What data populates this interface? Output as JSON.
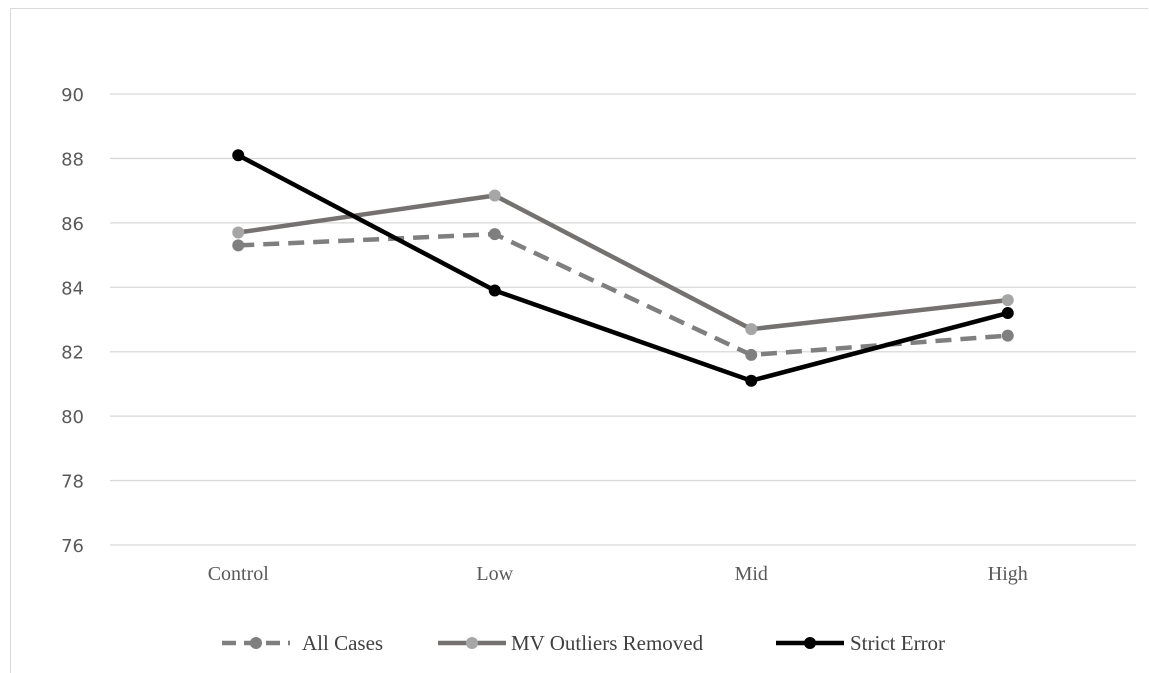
{
  "chart_data": {
    "type": "line",
    "categories": [
      "Control",
      "Low",
      "Mid",
      "High"
    ],
    "series": [
      {
        "name": "All Cases",
        "values": [
          85.3,
          85.65,
          81.9,
          82.5
        ],
        "color": "#7f7f7f",
        "marker_color": "#7f7f7f",
        "dashed": true
      },
      {
        "name": "MV Outliers Removed",
        "values": [
          85.7,
          86.85,
          82.7,
          83.6
        ],
        "color": "#767171",
        "marker_color": "#a6a6a6",
        "dashed": false
      },
      {
        "name": "Strict Error",
        "values": [
          88.1,
          83.9,
          81.1,
          83.2
        ],
        "color": "#000000",
        "marker_color": "#000000",
        "dashed": false
      }
    ],
    "yticks": [
      "76",
      "78",
      "80",
      "82",
      "84",
      "86",
      "88",
      "90"
    ],
    "ylim": [
      76,
      90
    ],
    "grid": true,
    "legend_position": "bottom"
  }
}
